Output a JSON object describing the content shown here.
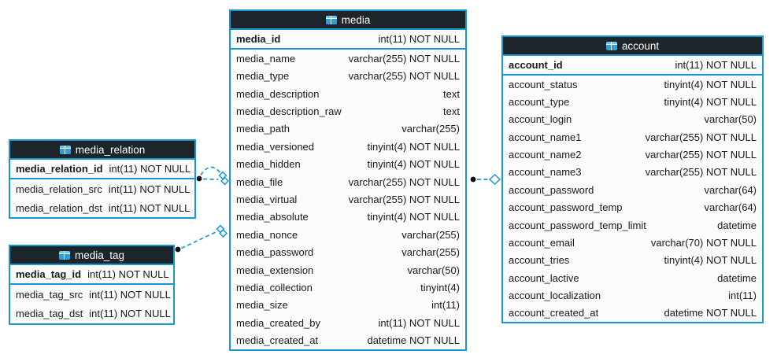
{
  "diagram": {
    "tables": [
      {
        "title": "media_relation",
        "icon": "table-icon",
        "primary_key": {
          "name": "media_relation_id",
          "type": "int(11) NOT NULL"
        },
        "columns": [
          {
            "name": "media_relation_src",
            "type": "int(11) NOT NULL"
          },
          {
            "name": "media_relation_dst",
            "type": "int(11) NOT NULL"
          }
        ]
      },
      {
        "title": "media_tag",
        "icon": "table-icon",
        "primary_key": {
          "name": "media_tag_id",
          "type": "int(11) NOT NULL"
        },
        "columns": [
          {
            "name": "media_tag_src",
            "type": "int(11) NOT NULL"
          },
          {
            "name": "media_tag_dst",
            "type": "int(11) NOT NULL"
          }
        ]
      },
      {
        "title": "media",
        "icon": "table-icon",
        "primary_key": {
          "name": "media_id",
          "type": "int(11) NOT NULL"
        },
        "columns": [
          {
            "name": "media_name",
            "type": "varchar(255) NOT NULL"
          },
          {
            "name": "media_type",
            "type": "varchar(255) NOT NULL"
          },
          {
            "name": "media_description",
            "type": "text"
          },
          {
            "name": "media_description_raw",
            "type": "text"
          },
          {
            "name": "media_path",
            "type": "varchar(255)"
          },
          {
            "name": "media_versioned",
            "type": "tinyint(4) NOT NULL"
          },
          {
            "name": "media_hidden",
            "type": "tinyint(4) NOT NULL"
          },
          {
            "name": "media_file",
            "type": "varchar(255) NOT NULL"
          },
          {
            "name": "media_virtual",
            "type": "varchar(255) NOT NULL"
          },
          {
            "name": "media_absolute",
            "type": "tinyint(4) NOT NULL"
          },
          {
            "name": "media_nonce",
            "type": "varchar(255)"
          },
          {
            "name": "media_password",
            "type": "varchar(255)"
          },
          {
            "name": "media_extension",
            "type": "varchar(50)"
          },
          {
            "name": "media_collection",
            "type": "tinyint(4)"
          },
          {
            "name": "media_size",
            "type": "int(11)"
          },
          {
            "name": "media_created_by",
            "type": "int(11) NOT NULL"
          },
          {
            "name": "media_created_at",
            "type": "datetime NOT NULL"
          }
        ]
      },
      {
        "title": "account",
        "icon": "table-icon",
        "primary_key": {
          "name": "account_id",
          "type": "int(11) NOT NULL"
        },
        "columns": [
          {
            "name": "account_status",
            "type": "tinyint(4) NOT NULL"
          },
          {
            "name": "account_type",
            "type": "tinyint(4) NOT NULL"
          },
          {
            "name": "account_login",
            "type": "varchar(50)"
          },
          {
            "name": "account_name1",
            "type": "varchar(255) NOT NULL"
          },
          {
            "name": "account_name2",
            "type": "varchar(255) NOT NULL"
          },
          {
            "name": "account_name3",
            "type": "varchar(255) NOT NULL"
          },
          {
            "name": "account_password",
            "type": "varchar(64)"
          },
          {
            "name": "account_password_temp",
            "type": "varchar(64)"
          },
          {
            "name": "account_password_temp_limit",
            "type": "datetime"
          },
          {
            "name": "account_email",
            "type": "varchar(70) NOT NULL"
          },
          {
            "name": "account_tries",
            "type": "tinyint(4) NOT NULL"
          },
          {
            "name": "account_lactive",
            "type": "datetime"
          },
          {
            "name": "account_localization",
            "type": "int(11)"
          },
          {
            "name": "account_created_at",
            "type": "datetime NOT NULL"
          }
        ]
      }
    ],
    "relationships": [
      {
        "from": "media_relation",
        "to": "media",
        "line_style": "dashed",
        "line_count": 2
      },
      {
        "from": "media_tag",
        "to": "media",
        "line_style": "dashed",
        "line_count": 1
      },
      {
        "from": "media",
        "to": "account",
        "line_style": "dashed",
        "line_count": 1
      }
    ],
    "colors": {
      "accent_blue": "#1598d6",
      "header_bg": "#1d242a",
      "header_text": "#ffffff",
      "row_bg": "#fbfbfb",
      "text": "#1a1a1a",
      "icon_blue": "#2d9fd9",
      "icon_light": "#6cc7ee"
    }
  }
}
